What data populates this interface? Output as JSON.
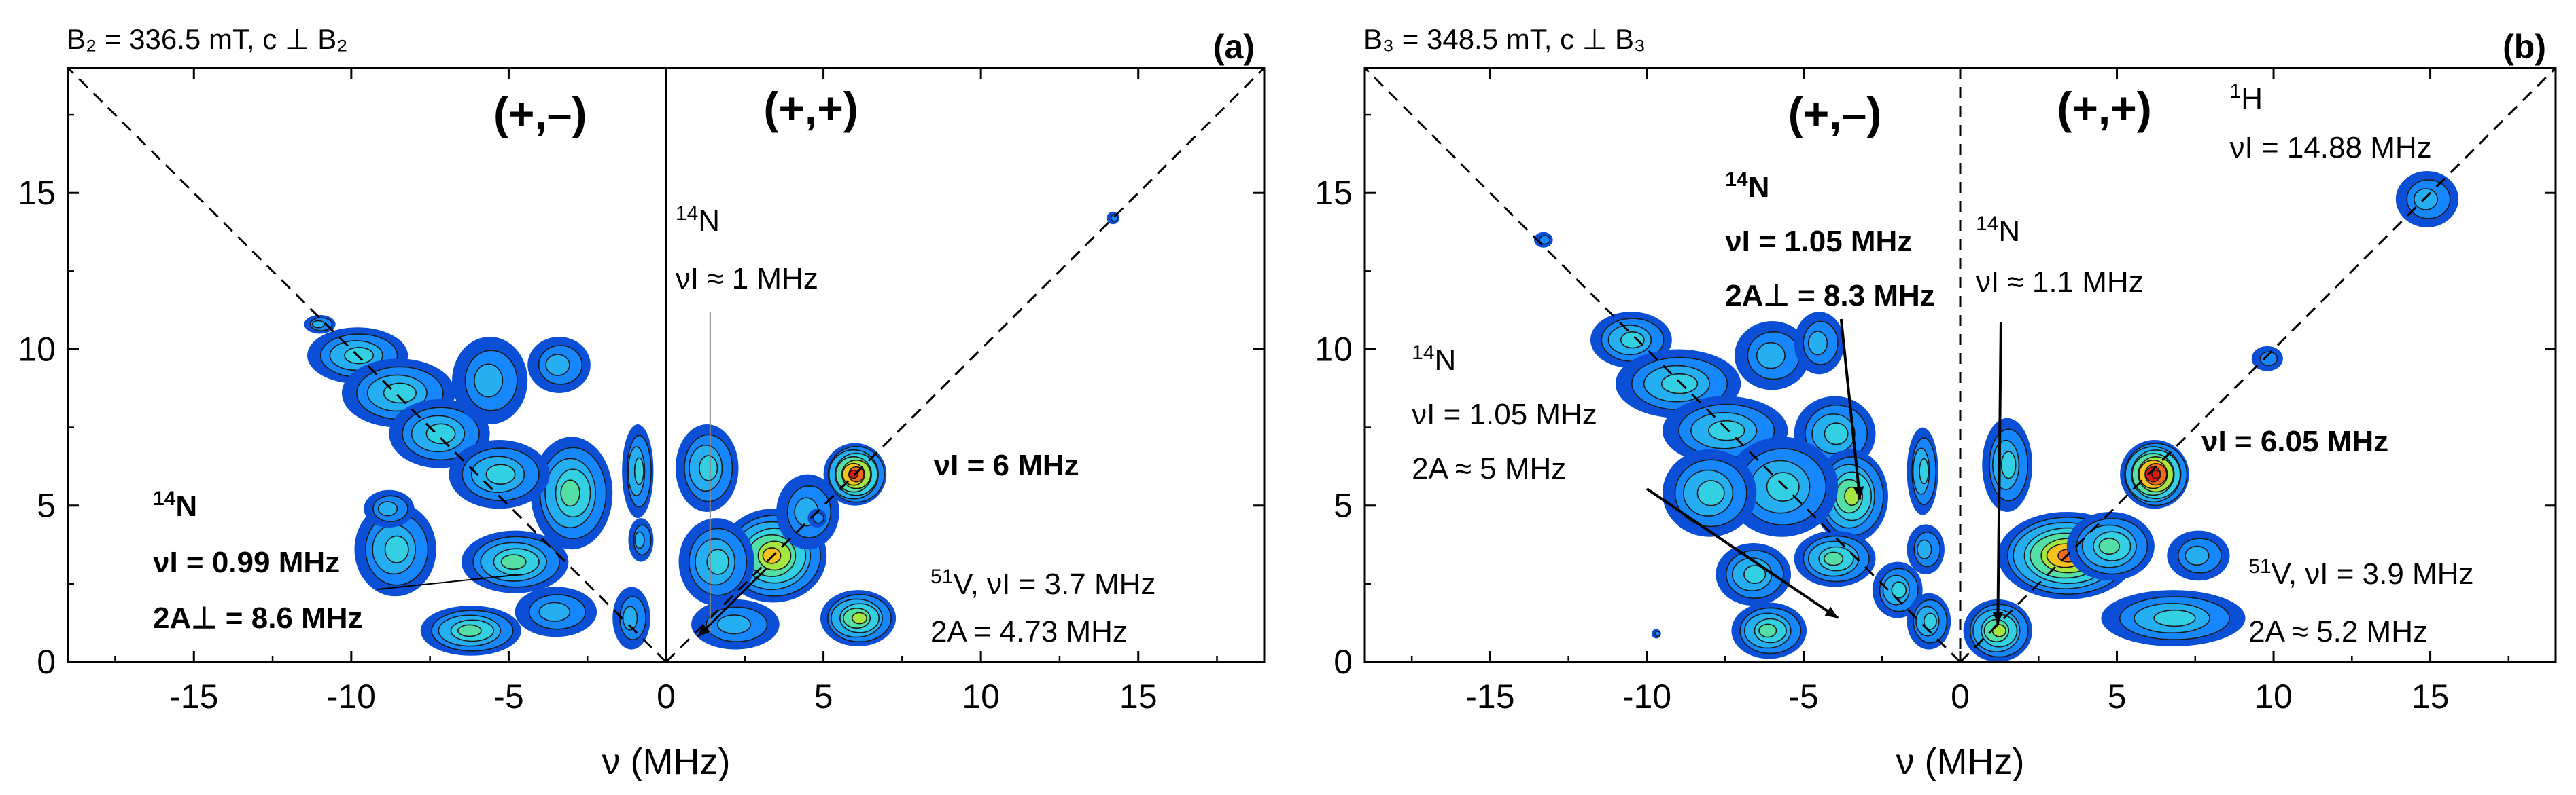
{
  "colors": {
    "contour_levels": [
      "#0a4fd6",
      "#1787ff",
      "#25aef2",
      "#33cfe2",
      "#54dfa6",
      "#a5e640",
      "#f7c21d",
      "#f26a1b",
      "#e01912"
    ],
    "guide_line": "#000000",
    "gray_label": "#8c8c8c"
  },
  "chart_data": [
    {
      "panel": "a",
      "type": "heatmap",
      "subtype": "HYSCORE contour plot",
      "header": "B₂ = 336.5 mT, c ⊥ B₂",
      "panel_label": "(a)",
      "xlabel": "ν (MHz)",
      "xlim": [
        -19,
        19
      ],
      "ylim": [
        0,
        19
      ],
      "xticks": [
        -15,
        -10,
        -5,
        0,
        5,
        10,
        15
      ],
      "yticks": [
        0,
        5,
        10,
        15
      ],
      "quadrant_labels": {
        "left": "(+,–)",
        "right": "(+,+)"
      },
      "center_line": "solid",
      "peaks": [
        {
          "x": -11.0,
          "y": 10.8,
          "rx": 0.5,
          "ry": 0.3,
          "level": 2
        },
        {
          "x": -9.8,
          "y": 9.8,
          "rx": 1.6,
          "ry": 0.9,
          "level": 3
        },
        {
          "x": -8.5,
          "y": 8.6,
          "rx": 1.8,
          "ry": 1.1,
          "level": 3
        },
        {
          "x": -7.2,
          "y": 7.3,
          "rx": 1.6,
          "ry": 1.1,
          "level": 3
        },
        {
          "x": -5.6,
          "y": 9.0,
          "rx": 1.2,
          "ry": 1.4,
          "level": 2
        },
        {
          "x": -3.4,
          "y": 9.5,
          "rx": 1.0,
          "ry": 0.9,
          "level": 2
        },
        {
          "x": -3.0,
          "y": 5.4,
          "rx": 1.3,
          "ry": 1.8,
          "level": 4
        },
        {
          "x": -5.3,
          "y": 6.0,
          "rx": 1.6,
          "ry": 1.1,
          "level": 3
        },
        {
          "x": -4.8,
          "y": 3.2,
          "rx": 1.7,
          "ry": 1.0,
          "level": 4
        },
        {
          "x": -8.6,
          "y": 3.6,
          "rx": 1.3,
          "ry": 1.5,
          "level": 3
        },
        {
          "x": -8.8,
          "y": 4.9,
          "rx": 0.8,
          "ry": 0.6,
          "level": 2
        },
        {
          "x": -6.2,
          "y": 1.0,
          "rx": 1.6,
          "ry": 0.8,
          "level": 4
        },
        {
          "x": -3.5,
          "y": 1.6,
          "rx": 1.3,
          "ry": 0.8,
          "level": 2
        },
        {
          "x": -1.1,
          "y": 1.4,
          "rx": 0.6,
          "ry": 1.0,
          "level": 2
        },
        {
          "x": -0.9,
          "y": 6.1,
          "rx": 0.5,
          "ry": 1.5,
          "level": 3
        },
        {
          "x": -0.8,
          "y": 3.9,
          "rx": 0.4,
          "ry": 0.7,
          "level": 2
        },
        {
          "x": 1.3,
          "y": 6.2,
          "rx": 1.0,
          "ry": 1.4,
          "level": 3
        },
        {
          "x": 3.4,
          "y": 3.4,
          "rx": 1.7,
          "ry": 1.5,
          "level": 6
        },
        {
          "x": 1.6,
          "y": 3.2,
          "rx": 1.2,
          "ry": 1.4,
          "level": 3
        },
        {
          "x": 2.2,
          "y": 1.2,
          "rx": 1.4,
          "ry": 0.8,
          "level": 2
        },
        {
          "x": 6.0,
          "y": 6.0,
          "rx": 1.0,
          "ry": 1.0,
          "level": 8
        },
        {
          "x": 4.5,
          "y": 4.8,
          "rx": 1.0,
          "ry": 1.2,
          "level": 2
        },
        {
          "x": 6.1,
          "y": 1.4,
          "rx": 1.2,
          "ry": 0.9,
          "level": 5
        },
        {
          "x": 4.8,
          "y": 4.6,
          "rx": 0.3,
          "ry": 0.3,
          "level": 1
        },
        {
          "x": 14.2,
          "y": 14.2,
          "rx": 0.2,
          "ry": 0.2,
          "level": 1
        }
      ],
      "annotations": [
        {
          "key": "a14n_left",
          "iso": "14",
          "lines": [
            "N",
            "νI = 0.99 MHz",
            "2A⊥ = 8.6 MHz"
          ],
          "bold": true
        },
        {
          "key": "a14n_right",
          "iso": "14",
          "lines": [
            "N",
            "νI ≈ 1 MHz"
          ],
          "bold": false
        },
        {
          "key": "a_nu6",
          "text": "νI = 6 MHz",
          "color": "gray"
        },
        {
          "key": "a51v",
          "iso": "51",
          "lines": [
            "V, νI = 3.7 MHz",
            "2A = 4.73 MHz"
          ],
          "bold": false
        }
      ]
    },
    {
      "panel": "b",
      "type": "heatmap",
      "subtype": "HYSCORE contour plot",
      "header": "B₃ = 348.5 mT, c ⊥ B₃",
      "panel_label": "(b)",
      "xlabel": "ν (MHz)",
      "xlim": [
        -19,
        19
      ],
      "ylim": [
        0,
        19
      ],
      "xticks": [
        -15,
        -10,
        -5,
        0,
        5,
        10,
        15
      ],
      "yticks": [
        0,
        5,
        10,
        15
      ],
      "quadrant_labels": {
        "left": "(+,–)",
        "right": "(+,+)"
      },
      "center_line": "dashed",
      "peaks": [
        {
          "x": -13.3,
          "y": 13.5,
          "rx": 0.3,
          "ry": 0.25,
          "level": 1
        },
        {
          "x": -10.5,
          "y": 10.3,
          "rx": 1.3,
          "ry": 0.9,
          "level": 3
        },
        {
          "x": -9.0,
          "y": 8.9,
          "rx": 2.0,
          "ry": 1.1,
          "level": 3
        },
        {
          "x": -7.5,
          "y": 7.4,
          "rx": 2.0,
          "ry": 1.1,
          "level": 3
        },
        {
          "x": -6.0,
          "y": 9.8,
          "rx": 1.2,
          "ry": 1.1,
          "level": 2
        },
        {
          "x": -4.5,
          "y": 10.2,
          "rx": 0.8,
          "ry": 1.0,
          "level": 2
        },
        {
          "x": -4.0,
          "y": 7.3,
          "rx": 1.3,
          "ry": 1.2,
          "level": 3
        },
        {
          "x": -3.5,
          "y": 5.3,
          "rx": 1.2,
          "ry": 1.5,
          "level": 5
        },
        {
          "x": -5.7,
          "y": 5.6,
          "rx": 1.8,
          "ry": 1.6,
          "level": 3
        },
        {
          "x": -8.0,
          "y": 5.4,
          "rx": 1.5,
          "ry": 1.4,
          "level": 3
        },
        {
          "x": -4.0,
          "y": 3.3,
          "rx": 1.3,
          "ry": 0.9,
          "level": 4
        },
        {
          "x": -6.1,
          "y": 1.0,
          "rx": 1.2,
          "ry": 0.9,
          "level": 4
        },
        {
          "x": -6.6,
          "y": 2.8,
          "rx": 1.2,
          "ry": 1.0,
          "level": 3
        },
        {
          "x": -2.0,
          "y": 2.3,
          "rx": 0.8,
          "ry": 0.9,
          "level": 3
        },
        {
          "x": -1.2,
          "y": 6.1,
          "rx": 0.5,
          "ry": 1.4,
          "level": 3
        },
        {
          "x": -1.1,
          "y": 3.6,
          "rx": 0.6,
          "ry": 0.8,
          "level": 2
        },
        {
          "x": -1.0,
          "y": 1.3,
          "rx": 0.7,
          "ry": 0.9,
          "level": 3
        },
        {
          "x": 1.2,
          "y": 1.0,
          "rx": 1.1,
          "ry": 1.0,
          "level": 5
        },
        {
          "x": 1.5,
          "y": 6.3,
          "rx": 0.8,
          "ry": 1.5,
          "level": 3
        },
        {
          "x": 3.4,
          "y": 3.4,
          "rx": 2.2,
          "ry": 1.4,
          "level": 7
        },
        {
          "x": 4.8,
          "y": 3.7,
          "rx": 1.4,
          "ry": 1.1,
          "level": 4
        },
        {
          "x": 6.2,
          "y": 6.0,
          "rx": 1.1,
          "ry": 1.1,
          "level": 9
        },
        {
          "x": 6.8,
          "y": 1.4,
          "rx": 2.3,
          "ry": 0.9,
          "level": 3
        },
        {
          "x": 7.6,
          "y": 3.4,
          "rx": 1.0,
          "ry": 0.8,
          "level": 2
        },
        {
          "x": 9.8,
          "y": 9.7,
          "rx": 0.5,
          "ry": 0.4,
          "level": 1
        },
        {
          "x": 14.9,
          "y": 14.8,
          "rx": 1.0,
          "ry": 0.9,
          "level": 2
        },
        {
          "x": -9.7,
          "y": 0.9,
          "rx": 0.15,
          "ry": 0.15,
          "level": 1
        }
      ],
      "annotations": [
        {
          "key": "b14n_mid",
          "iso": "14",
          "lines": [
            "N",
            "νI = 1.05 MHz",
            "2A⊥ = 8.3 MHz"
          ],
          "bold": true
        },
        {
          "key": "b14n_left",
          "iso": "14",
          "lines": [
            "N",
            "νI = 1.05 MHz",
            "2A ≈ 5 MHz"
          ],
          "bold": false
        },
        {
          "key": "b14n_right",
          "iso": "14",
          "lines": [
            "N",
            "νI ≈ 1.1 MHz"
          ],
          "bold": false
        },
        {
          "key": "b1h",
          "iso": "1",
          "lines": [
            "H",
            "νI = 14.88 MHz"
          ],
          "bold": false
        },
        {
          "key": "b_nu605",
          "text": "νI = 6.05 MHz",
          "color": "gray"
        },
        {
          "key": "b51v",
          "iso": "51",
          "lines": [
            "V, νI = 3.9 MHz",
            "2A ≈ 5.2 MHz"
          ],
          "bold": false
        }
      ]
    }
  ]
}
